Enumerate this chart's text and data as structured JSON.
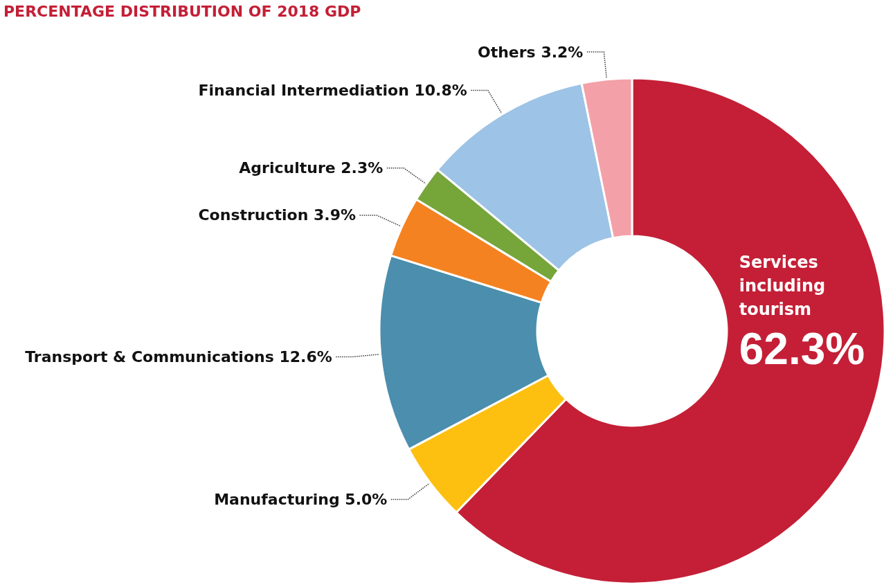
{
  "chart_data": {
    "type": "donut",
    "title": "PERCENTAGE DISTRIBUTION OF 2018 GDP",
    "categories": [
      "Services including tourism",
      "Manufacturing",
      "Transport & Communications",
      "Construction",
      "Agriculture",
      "Financial Intermediation",
      "Others"
    ],
    "values": [
      62.3,
      5.0,
      12.6,
      3.9,
      2.3,
      10.8,
      3.2
    ],
    "value_labels": [
      "62.3%",
      "5.0%",
      "12.6%",
      "3.9%",
      "2.3%",
      "10.8%",
      "3.2%"
    ],
    "colors": [
      "#c41f36",
      "#fdc010",
      "#4b8ead",
      "#f58220",
      "#76a53a",
      "#9dc3e6",
      "#f4a0a8"
    ],
    "legend": false
  }
}
